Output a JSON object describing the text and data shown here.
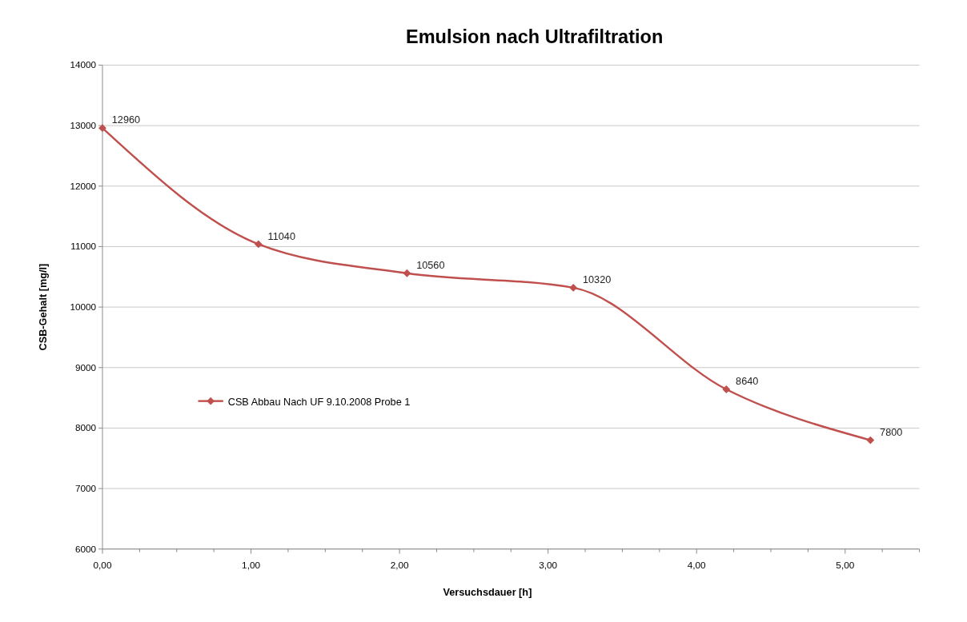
{
  "chart_data": {
    "type": "line",
    "title": "Emulsion nach Ultrafiltration",
    "xlabel": "Versuchsdauer [h]",
    "ylabel": "CSB-Gehalt [mg/l]",
    "x": [
      0,
      1.05,
      2.05,
      3.17,
      4.2,
      5.17
    ],
    "series": [
      {
        "name": "CSB  Abbau Nach UF 9.10.2008  Probe 1",
        "color": "#c0504d",
        "values": [
          12960,
          11040,
          10560,
          10320,
          8640,
          7800
        ]
      }
    ],
    "xlim": [
      0,
      5.5
    ],
    "xticks": [
      {
        "value": 0,
        "label": "0,00"
      },
      {
        "value": 0.25,
        "label": null
      },
      {
        "value": 0.5,
        "label": null
      },
      {
        "value": 0.75,
        "label": null
      },
      {
        "value": 1,
        "label": "1,00"
      },
      {
        "value": 1.25,
        "label": null
      },
      {
        "value": 1.5,
        "label": null
      },
      {
        "value": 1.75,
        "label": null
      },
      {
        "value": 2,
        "label": "2,00"
      },
      {
        "value": 2.25,
        "label": null
      },
      {
        "value": 2.5,
        "label": null
      },
      {
        "value": 2.75,
        "label": null
      },
      {
        "value": 3,
        "label": "3,00"
      },
      {
        "value": 3.25,
        "label": null
      },
      {
        "value": 3.5,
        "label": null
      },
      {
        "value": 3.75,
        "label": null
      },
      {
        "value": 4,
        "label": "4,00"
      },
      {
        "value": 4.25,
        "label": null
      },
      {
        "value": 4.5,
        "label": null
      },
      {
        "value": 4.75,
        "label": null
      },
      {
        "value": 5,
        "label": "5,00"
      },
      {
        "value": 5.25,
        "label": null
      },
      {
        "value": 5.5,
        "label": null
      }
    ],
    "ylim": [
      6000,
      14000
    ],
    "yticks": [
      6000,
      7000,
      8000,
      9000,
      10000,
      11000,
      12000,
      13000,
      14000
    ],
    "grid": "y",
    "legend": "left",
    "marker": "diamond",
    "line_style": "solid",
    "data_labels": true
  }
}
